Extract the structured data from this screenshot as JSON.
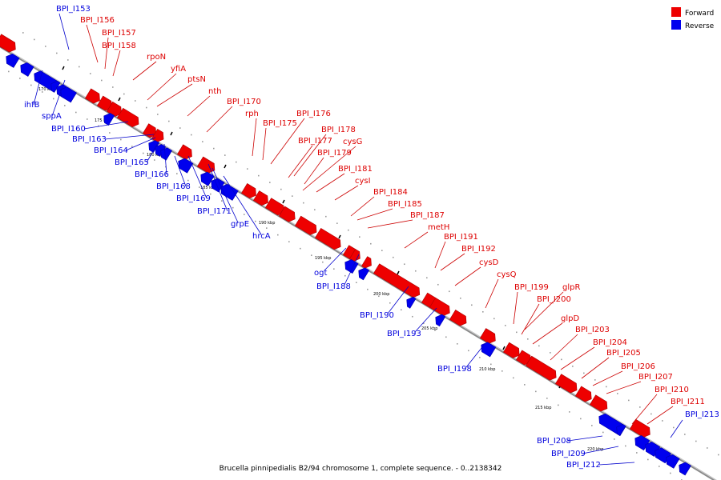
{
  "caption": "Brucella pinnipedialis B2/94 chromosome 1, complete sequence. - 0..2138342",
  "legend": {
    "forward": {
      "label": "Forward",
      "color": "#ee0000"
    },
    "reverse": {
      "label": "Reverse",
      "color": "#0000ee"
    }
  },
  "colors": {
    "backbone": "#777777",
    "forward_line": "#cc0000",
    "reverse_line": "#0000cc"
  },
  "ticks": [
    "170 kbp",
    "175 kbp",
    "180 kbp",
    "185 kbp",
    "190 kbp",
    "195 kbp",
    "200 kbp",
    "205 kbp",
    "210 kbp",
    "215 kbp",
    "220 kbp"
  ],
  "forward_genes": [
    "BPI_I156",
    "BPI_I157",
    "BPI_I158",
    "rpoN",
    "yfiA",
    "ptsN",
    "nth",
    "BPI_I170",
    "rph",
    "BPI_I175",
    "BPI_I176",
    "BPI_I177",
    "BPI_I178",
    "cysG",
    "BPI_I179",
    "BPI_I181",
    "cysI",
    "BPI_I184",
    "BPI_I185",
    "BPI_I187",
    "metH",
    "BPI_I191",
    "BPI_I192",
    "cysD",
    "cysQ",
    "BPI_I199",
    "glpR",
    "BPI_I200",
    "glpD",
    "BPI_I203",
    "BPI_I204",
    "BPI_I205",
    "BPI_I206",
    "BPI_I207",
    "BPI_I210",
    "BPI_I211"
  ],
  "reverse_genes": [
    "BPI_I153",
    "ihfB",
    "sppA",
    "BPI_I160",
    "BPI_I163",
    "BPI_I164",
    "BPI_I165",
    "BPI_I166",
    "BPI_I168",
    "BPI_I169",
    "BPI_I171",
    "grpE",
    "hrcA",
    "ogt",
    "BPI_I188",
    "BPI_I190",
    "BPI_I193",
    "BPI_I198",
    "BPI_I208",
    "BPI_I209",
    "BPI_I212",
    "BPI_I213"
  ]
}
